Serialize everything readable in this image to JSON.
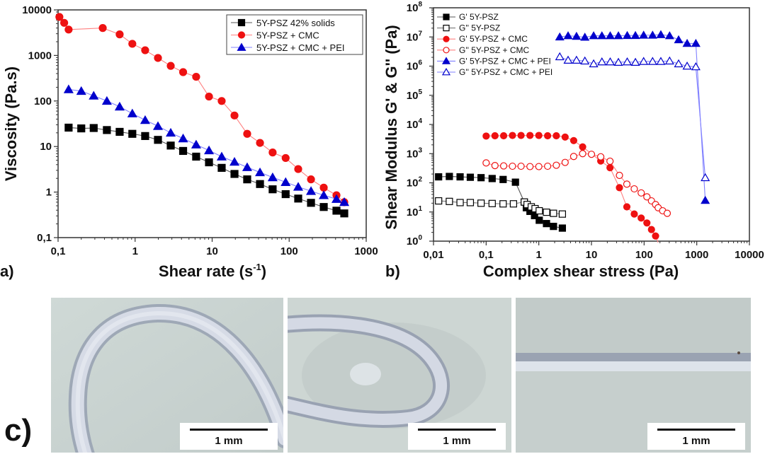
{
  "figure": {
    "panel_labels": {
      "a": "a)",
      "b": "b)",
      "c": "c)"
    }
  },
  "chart_data": [
    {
      "id": "a",
      "type": "scatter",
      "title": "",
      "xlabel": "Shear rate (s",
      "xlabel_sup": "-1",
      "xlabel_end": ")",
      "ylabel": "Viscosity (Pa.s)",
      "xscale": "log",
      "yscale": "log",
      "xlim": [
        0.1,
        1000
      ],
      "ylim": [
        0.1,
        10000
      ],
      "xticks": [
        0.1,
        1,
        10,
        100,
        1000
      ],
      "xtick_labels": [
        "0,1",
        "1",
        "10",
        "100",
        "1000"
      ],
      "yticks": [
        0.1,
        1,
        10,
        100,
        1000,
        10000
      ],
      "ytick_labels": [
        "0,1",
        "1",
        "10",
        "100",
        "1000",
        "10000"
      ],
      "grid": false,
      "legend_position": "top-right",
      "series": [
        {
          "name": "5Y-PSZ 42% solids",
          "color": "#000000",
          "line_color": "#555555",
          "marker": "square-filled",
          "x": [
            0.137,
            0.2,
            0.29,
            0.43,
            0.63,
            0.92,
            1.35,
            1.98,
            2.9,
            4.2,
            6.2,
            9.1,
            13.3,
            19.5,
            28.5,
            41.8,
            61,
            90,
            131,
            192,
            281,
            411,
            519
          ],
          "y": [
            26,
            25,
            25.5,
            23,
            21,
            19,
            17,
            14,
            10.5,
            8,
            6,
            4.5,
            3.4,
            2.5,
            1.9,
            1.5,
            1.15,
            0.9,
            0.72,
            0.58,
            0.47,
            0.39,
            0.34
          ]
        },
        {
          "name": "5Y-PSZ + CMC",
          "color": "#ee1111",
          "line_color": "#ff8080",
          "marker": "circle-filled",
          "x": [
            0.104,
            0.12,
            0.137,
            0.38,
            0.63,
            0.92,
            1.35,
            1.98,
            2.9,
            4.2,
            6.2,
            9.1,
            13.3,
            19.5,
            28.5,
            41.8,
            61,
            90,
            131,
            192,
            281,
            411,
            519
          ],
          "y": [
            7000,
            5200,
            3700,
            4000,
            2900,
            1800,
            1300,
            880,
            590,
            430,
            340,
            125,
            100,
            48,
            19,
            12,
            7.4,
            5.6,
            3.2,
            1.9,
            1.25,
            0.85,
            0.6
          ]
        },
        {
          "name": "5Y-PSZ + CMC + PEI",
          "color": "#0000cc",
          "line_color": "#8080ff",
          "marker": "triangle-filled",
          "x": [
            0.137,
            0.2,
            0.29,
            0.43,
            0.63,
            0.92,
            1.35,
            1.98,
            2.9,
            4.2,
            6.2,
            9.1,
            13.3,
            19.5,
            28.5,
            41.8,
            61,
            90,
            131,
            192,
            281,
            411,
            519
          ],
          "y": [
            180,
            165,
            130,
            100,
            75,
            53,
            38,
            28,
            20,
            15,
            11,
            8.2,
            6,
            4.6,
            3.5,
            2.7,
            2.1,
            1.65,
            1.3,
            1.05,
            0.85,
            0.7,
            0.6
          ]
        }
      ]
    },
    {
      "id": "b",
      "type": "scatter",
      "title": "",
      "xlabel": "Complex shear stress (Pa)",
      "ylabel": "Shear Modulus G' & G'' (Pa)",
      "xscale": "log",
      "yscale": "log",
      "xlim": [
        0.01,
        10000
      ],
      "ylim": [
        1,
        100000000
      ],
      "xticks": [
        0.01,
        0.1,
        1,
        10,
        100,
        1000,
        10000
      ],
      "xtick_labels": [
        "0,01",
        "0,1",
        "1",
        "10",
        "100",
        "1000",
        "10000"
      ],
      "yticks": [
        1,
        10,
        100,
        1000,
        10000,
        100000,
        1000000,
        10000000,
        100000000
      ],
      "ytick_labels": [
        "10",
        "10",
        "10",
        "10",
        "10",
        "10",
        "10",
        "10",
        "10"
      ],
      "ytick_exponents": [
        "0",
        "1",
        "2",
        "3",
        "4",
        "5",
        "6",
        "7",
        "8"
      ],
      "grid": false,
      "legend_position": "top-left",
      "series": [
        {
          "name": "G' 5Y-PSZ",
          "color": "#000000",
          "line_color": "#555555",
          "marker": "square-filled",
          "x": [
            0.0125,
            0.02,
            0.032,
            0.05,
            0.08,
            0.13,
            0.21,
            0.36,
            0.53,
            0.58,
            0.68,
            0.83,
            1.02,
            1.4,
            1.9,
            2.8
          ],
          "y": [
            160,
            165,
            160,
            155,
            150,
            140,
            130,
            105,
            22,
            14,
            10.5,
            7.5,
            5.2,
            4,
            3.2,
            2.8
          ]
        },
        {
          "name": "G'' 5Y-PSZ",
          "color": "#000000",
          "line_color": "#777777",
          "marker": "square-open",
          "x": [
            0.0125,
            0.02,
            0.032,
            0.05,
            0.08,
            0.13,
            0.21,
            0.33,
            0.53,
            0.6,
            0.72,
            0.85,
            1.02,
            1.4,
            1.9,
            2.8
          ],
          "y": [
            24,
            23,
            21,
            21,
            20,
            19.5,
            19,
            19,
            22,
            18,
            15,
            13,
            11,
            9.8,
            9,
            8.5
          ]
        },
        {
          "name": "G' 5Y-PSZ + CMC",
          "color": "#ee1111",
          "line_color": "#ff8080",
          "marker": "circle-filled",
          "x": [
            0.1,
            0.147,
            0.215,
            0.316,
            0.46,
            0.68,
            1.0,
            1.47,
            2.15,
            3.16,
            4.6,
            6.8,
            15,
            22.5,
            34,
            47,
            65,
            88,
            113,
            138,
            165,
            185
          ],
          "y": [
            4000,
            4100,
            4100,
            4200,
            4200,
            4200,
            4200,
            4100,
            4100,
            3700,
            2800,
            1700,
            560,
            330,
            68,
            15,
            8.5,
            6.2,
            4.2,
            2.5,
            1.5,
            0.85
          ]
        },
        {
          "name": "G'' 5Y-PSZ + CMC",
          "color": "#ee1111",
          "line_color": "#ff8080",
          "marker": "circle-open",
          "x": [
            0.1,
            0.147,
            0.215,
            0.316,
            0.46,
            0.68,
            1.0,
            1.47,
            2.15,
            3.16,
            4.6,
            6.8,
            10,
            15,
            22.5,
            34,
            47,
            65,
            88,
            113,
            138,
            165,
            185,
            225,
            275
          ],
          "y": [
            480,
            390,
            380,
            370,
            370,
            360,
            360,
            370,
            400,
            500,
            800,
            1000,
            950,
            780,
            550,
            180,
            90,
            62,
            45,
            33,
            24,
            18,
            14,
            11,
            9
          ]
        },
        {
          "name": "G' 5Y-PSZ + CMC + PEI",
          "color": "#0000cc",
          "line_color": "#8080ff",
          "marker": "triangle-filled",
          "x": [
            2.5,
            3.6,
            5.2,
            7.5,
            11,
            15.8,
            22.7,
            32.5,
            47.8,
            68.4,
            98,
            145,
            208,
            305,
            452,
            656,
            960,
            1450
          ],
          "y": [
            10000000,
            11000000,
            10500000,
            9800000,
            11000000,
            11000000,
            11000000,
            11000000,
            11200000,
            11200000,
            11500000,
            11500000,
            12000000,
            11000000,
            8000000,
            6000000,
            6000000,
            25
          ]
        },
        {
          "name": "G'' 5Y-PSZ + CMC + PEI",
          "color": "#0000cc",
          "line_color": "#8080ff",
          "marker": "triangle-open",
          "x": [
            2.5,
            3.6,
            5.2,
            7.5,
            11,
            15.8,
            22.7,
            32.5,
            47.8,
            68.4,
            98,
            145,
            208,
            305,
            452,
            656,
            960,
            1450
          ],
          "y": [
            2100000,
            1600000,
            1600000,
            1500000,
            1200000,
            1400000,
            1400000,
            1350000,
            1400000,
            1350000,
            1450000,
            1450000,
            1450000,
            1500000,
            1200000,
            1000000,
            950000,
            150
          ]
        }
      ]
    }
  ],
  "photos": [
    {
      "description": "looped extruded filament",
      "scale_label": "1 mm"
    },
    {
      "description": "folded extruded filament",
      "scale_label": "1 mm"
    },
    {
      "description": "straight extruded filament",
      "scale_label": "1 mm"
    }
  ]
}
